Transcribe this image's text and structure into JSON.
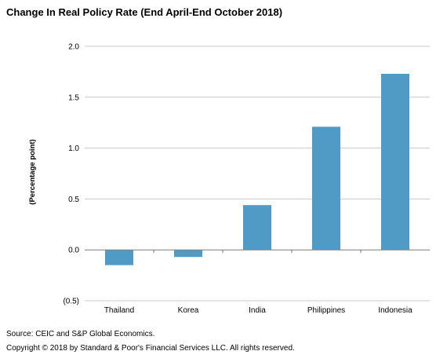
{
  "chart_data": {
    "type": "bar",
    "title": "Change In Real Policy Rate (End April-End October 2018)",
    "ylabel": "(Percentage point)",
    "xlabel": "",
    "categories": [
      "Thailand",
      "Korea",
      "India",
      "Philippines",
      "Indonesia"
    ],
    "values": [
      -0.15,
      -0.07,
      0.44,
      1.21,
      1.73
    ],
    "ylim": [
      -0.5,
      2.0
    ],
    "yticks": [
      -0.5,
      0.0,
      0.5,
      1.0,
      1.5,
      2.0
    ],
    "ytick_labels": [
      "(0.5)",
      "0.0",
      "0.5",
      "1.0",
      "1.5",
      "2.0"
    ],
    "grid": true,
    "bar_color": "#4f9bc6",
    "grid_color": "#c8c8c8"
  },
  "footer": {
    "source": "Source: CEIC and S&P Global Economics.",
    "copyright": "Copyright © 2018 by Standard & Poor's Financial Services LLC. All rights reserved."
  }
}
